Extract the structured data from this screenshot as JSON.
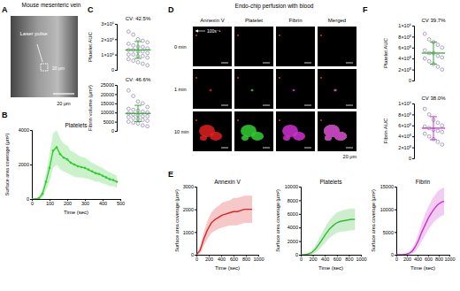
{
  "figure": {
    "panel_labels": [
      "A",
      "B",
      "C",
      "D",
      "E",
      "F"
    ],
    "headers": [
      "Mouse mesenteric vein",
      "Endo-chip perfusion with blood"
    ],
    "image_a": {
      "annotation": "Laser pulse",
      "inner_scale": "20 μm",
      "scale_bar": "20 μm"
    },
    "image_d": {
      "columns": [
        "Annexin V",
        "Platelet",
        "Fibrin",
        "Merged"
      ],
      "rows": [
        "0 min",
        "1 min",
        "10 min"
      ],
      "shear": "100s⁻¹",
      "scale_bar": "20 μm"
    }
  },
  "chart_data": [
    {
      "type": "line",
      "title": "Platelets",
      "x_label": "Time (sec)",
      "y_label": "Surface area coverage (μm²)",
      "x": [
        0,
        20,
        40,
        60,
        80,
        100,
        120,
        140,
        160,
        180,
        200,
        220,
        240,
        260,
        280,
        300,
        320,
        340,
        360,
        380,
        400,
        420,
        440,
        460,
        480
      ],
      "series": [
        {
          "color": "#33cc33",
          "values": [
            0,
            0,
            50,
            300,
            1000,
            1800,
            2800,
            3000,
            2600,
            2400,
            2300,
            2100,
            2000,
            1900,
            1850,
            1800,
            1700,
            1600,
            1500,
            1450,
            1350,
            1250,
            1150,
            1100,
            1000
          ],
          "error": [
            0,
            0,
            50,
            250,
            500,
            800,
            1000,
            1000,
            900,
            800,
            800,
            700,
            700,
            650,
            600,
            600,
            550,
            500,
            500,
            450,
            450,
            400,
            400,
            350,
            350
          ]
        }
      ],
      "marker": "circle",
      "xlim": [
        0,
        500
      ],
      "xticks": [
        0,
        100,
        200,
        300,
        400,
        500
      ],
      "ylim": [
        0,
        4000
      ],
      "yticks": [
        0,
        2000,
        4000
      ]
    },
    {
      "type": "strip",
      "y_label": "Platelet AUC",
      "annotation": "CV: 42.5%",
      "color": "#33aa33",
      "values": [
        2500000,
        2300000,
        2000000,
        1900000,
        1800000,
        1700000,
        1600000,
        1500000,
        1500000,
        1400000,
        1300000,
        1300000,
        1200000,
        1200000,
        1100000,
        1000000,
        1000000,
        900000,
        900000,
        800000,
        700000,
        600000,
        500000,
        400000,
        300000
      ],
      "mean": 1300000,
      "sd": 550000,
      "ylim": [
        0,
        3000000
      ],
      "yticks": [
        0,
        {
          "value": 1000000,
          "label": "1×10⁶"
        },
        {
          "value": 2000000,
          "label": "2×10⁶"
        },
        {
          "value": 3000000,
          "label": "3×10⁶"
        }
      ]
    },
    {
      "type": "strip",
      "y_label": "Fibrin volume (μm³)",
      "annotation": "CV: 46.6%",
      "color": "#33aa33",
      "values": [
        22000,
        19000,
        16000,
        15000,
        13000,
        12000,
        11500,
        11000,
        10500,
        10000,
        9500,
        9000,
        8500,
        8000,
        8000,
        7500,
        7000,
        6500,
        6000,
        5500,
        5000,
        4500,
        4000,
        3000,
        2500
      ],
      "mean": 9500,
      "sd": 4400,
      "ylim": [
        0,
        25000
      ],
      "yticks": [
        0,
        5000,
        10000,
        15000,
        20000,
        25000
      ]
    },
    {
      "type": "line",
      "title": "Annexin V",
      "x_label": "Time (sec)",
      "y_label": "Surface area coverage (μm²)",
      "x": [
        0,
        60,
        120,
        180,
        240,
        300,
        360,
        420,
        480,
        540,
        600,
        660,
        720,
        780,
        840,
        900
      ],
      "series": [
        {
          "color": "#dd2222",
          "values": [
            0,
            200,
            700,
            1100,
            1400,
            1550,
            1650,
            1750,
            1800,
            1850,
            1900,
            1900,
            1950,
            2000,
            2000,
            2000
          ],
          "error": [
            0,
            150,
            300,
            400,
            450,
            500,
            500,
            550,
            550,
            550,
            600,
            600,
            600,
            600,
            600,
            600
          ]
        }
      ],
      "xlim": [
        0,
        1000
      ],
      "xticks": [
        0,
        200,
        400,
        600,
        800,
        1000
      ],
      "ylim": [
        0,
        3000
      ],
      "yticks": [
        0,
        1000,
        2000,
        3000
      ]
    },
    {
      "type": "line",
      "title": "Platelets",
      "x_label": "Time (sec)",
      "y_label": "Surface area coverage (μm²)",
      "x": [
        0,
        60,
        120,
        180,
        240,
        300,
        360,
        420,
        480,
        540,
        600,
        660,
        720,
        780,
        840,
        900
      ],
      "series": [
        {
          "color": "#33bb33",
          "values": [
            0,
            0,
            100,
            300,
            800,
            1500,
            2300,
            3100,
            3800,
            4300,
            4700,
            4900,
            5000,
            5100,
            5200,
            5200
          ],
          "error": [
            0,
            0,
            100,
            300,
            500,
            800,
            1000,
            1200,
            1300,
            1400,
            1500,
            1500,
            1600,
            1600,
            1600,
            1600
          ]
        }
      ],
      "xlim": [
        0,
        1000
      ],
      "xticks": [
        0,
        200,
        400,
        600,
        800,
        1000
      ],
      "ylim": [
        0,
        10000
      ],
      "yticks": [
        0,
        2000,
        4000,
        6000,
        8000,
        10000
      ]
    },
    {
      "type": "line",
      "title": "Fibrin",
      "x_label": "Time (sec)",
      "y_label": "Surface area coverage (μm²)",
      "x": [
        0,
        60,
        120,
        180,
        240,
        300,
        360,
        420,
        480,
        540,
        600,
        660,
        720,
        780,
        840,
        900
      ],
      "series": [
        {
          "color": "#cc33cc",
          "values": [
            0,
            0,
            0,
            100,
            300,
            800,
            1800,
            3200,
            5000,
            6500,
            8000,
            9200,
            10200,
            11000,
            11500,
            11800
          ],
          "error": [
            0,
            0,
            0,
            100,
            300,
            600,
            1000,
            1500,
            2000,
            2300,
            2500,
            2700,
            2800,
            3000,
            3000,
            3000
          ]
        }
      ],
      "xlim": [
        0,
        1000
      ],
      "xticks": [
        0,
        200,
        400,
        600,
        800,
        1000
      ],
      "ylim": [
        0,
        15000
      ],
      "yticks": [
        0,
        5000,
        10000,
        15000
      ]
    },
    {
      "type": "strip",
      "y_label": "Platelet AUC",
      "annotation": "CV 39.7%",
      "color": "#33aa33",
      "values": [
        850000,
        750000,
        700000,
        650000,
        600000,
        550000,
        500000,
        500000,
        450000,
        420000,
        400000,
        350000,
        300000,
        250000,
        200000
      ],
      "mean": 500000,
      "sd": 200000,
      "ylim": [
        0,
        1000000
      ],
      "yticks": [
        0,
        {
          "value": 200000,
          "label": "2×10⁵"
        },
        {
          "value": 400000,
          "label": "4×10⁵"
        },
        {
          "value": 600000,
          "label": "6×10⁵"
        },
        {
          "value": 800000,
          "label": "8×10⁵"
        },
        {
          "value": 1000000,
          "label": "1×10⁶"
        }
      ]
    },
    {
      "type": "strip",
      "y_label": "Fibrin AUC",
      "annotation": "CV 38.0%",
      "color": "#cc33cc",
      "values": [
        900000,
        800000,
        700000,
        650000,
        600000,
        580000,
        550000,
        520000,
        500000,
        480000,
        450000,
        400000,
        350000,
        300000,
        250000
      ],
      "mean": 550000,
      "sd": 210000,
      "ylim": [
        0,
        1000000
      ],
      "yticks": [
        0,
        {
          "value": 200000,
          "label": "2×10⁵"
        },
        {
          "value": 400000,
          "label": "4×10⁵"
        },
        {
          "value": 600000,
          "label": "6×10⁵"
        },
        {
          "value": 800000,
          "label": "8×10⁵"
        },
        {
          "value": 1000000,
          "label": "1×10⁶"
        }
      ]
    }
  ]
}
